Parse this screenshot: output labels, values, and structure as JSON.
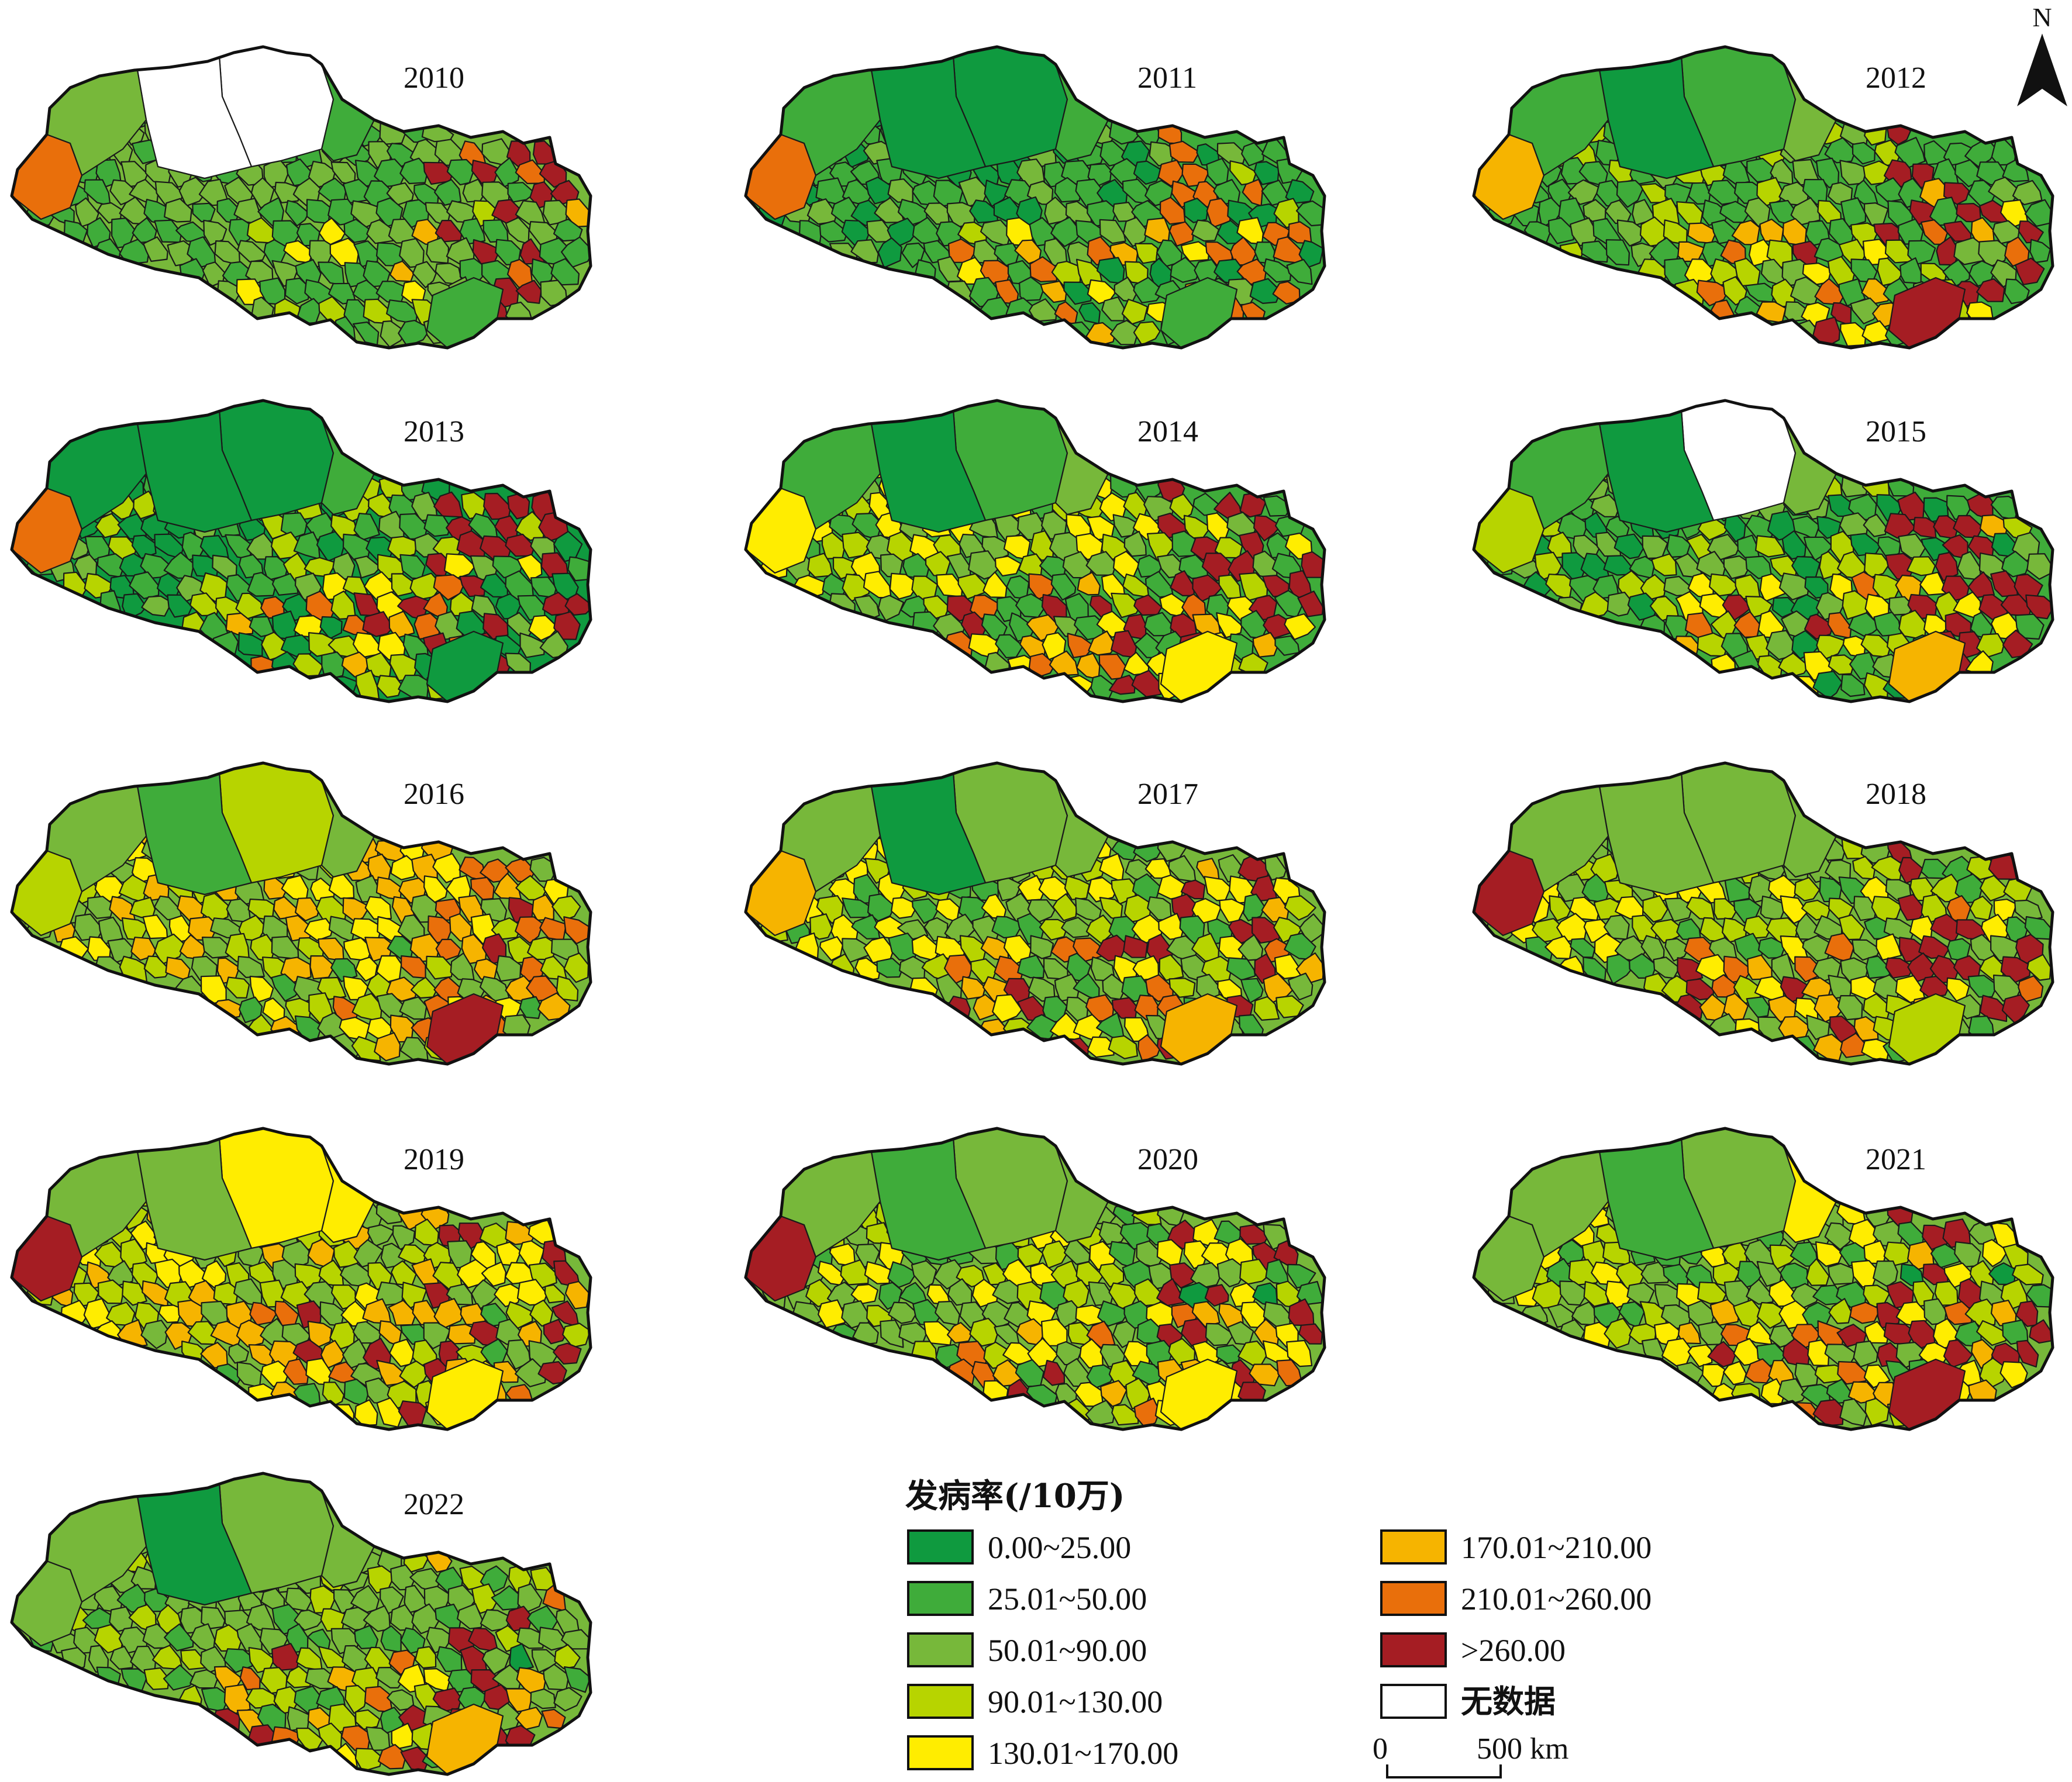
{
  "legend": {
    "title": "发病率(/10万)",
    "classes": [
      {
        "id": "c1",
        "label": "0.00~25.00",
        "color": "#0f9a3f"
      },
      {
        "id": "c2",
        "label": "25.01~50.00",
        "color": "#3fac3a"
      },
      {
        "id": "c3",
        "label": "50.01~90.00",
        "color": "#77b83a"
      },
      {
        "id": "c4",
        "label": "90.01~130.00",
        "color": "#b7d400"
      },
      {
        "id": "c5",
        "label": "130.01~170.00",
        "color": "#ffed00"
      },
      {
        "id": "c6",
        "label": "170.01~210.00",
        "color": "#f6b400"
      },
      {
        "id": "c7",
        "label": "210.01~260.00",
        "color": "#e96f0b"
      },
      {
        "id": "c8",
        "label": ">260.00",
        "color": "#a51d23"
      },
      {
        "id": "nd",
        "label": "无数据",
        "color": "#ffffff"
      }
    ]
  },
  "scale_bar": {
    "zero_label": "0",
    "distance_label": "500 km"
  },
  "north_arrow": {
    "label": "N",
    "icon": "north-arrow-icon"
  },
  "maps": [
    {
      "year": "2010",
      "palette": [
        "c3",
        "c2",
        "c3",
        "c2",
        "c4",
        "c3",
        "c6",
        "c5",
        "c7",
        "c8",
        "c2"
      ],
      "west": "c7",
      "north_block": "nd",
      "north_mid": "nd",
      "north_east": "c2",
      "east_hot": "c8"
    },
    {
      "year": "2011",
      "palette": [
        "c2",
        "c1",
        "c2",
        "c3",
        "c4",
        "c5",
        "c6",
        "c7",
        "c8",
        "c3",
        "c2"
      ],
      "west": "c7",
      "north_block": "c1",
      "north_mid": "c1",
      "north_east": "c2",
      "east_hot": "c7"
    },
    {
      "year": "2012",
      "palette": [
        "c2",
        "c3",
        "c2",
        "c4",
        "c5",
        "c6",
        "c7",
        "c8",
        "c3",
        "c2",
        "c8"
      ],
      "west": "c6",
      "north_block": "c2",
      "north_mid": "c1",
      "north_east": "c3",
      "east_hot": "c8"
    },
    {
      "year": "2013",
      "palette": [
        "c1",
        "c2",
        "c3",
        "c4",
        "c5",
        "c6",
        "c7",
        "c8",
        "c2",
        "c3",
        "c1"
      ],
      "west": "c7",
      "north_block": "c1",
      "north_mid": "c1",
      "north_east": "c2",
      "east_hot": "c8"
    },
    {
      "year": "2014",
      "palette": [
        "c2",
        "c3",
        "c4",
        "c5",
        "c6",
        "c7",
        "c8",
        "c2",
        "c3",
        "c1",
        "c5"
      ],
      "west": "c5",
      "north_block": "c2",
      "north_mid": "c1",
      "north_east": "c3",
      "east_hot": "c8"
    },
    {
      "year": "2015",
      "palette": [
        "c2",
        "c1",
        "c3",
        "c4",
        "c5",
        "c6",
        "c7",
        "c8",
        "c2",
        "c3",
        "c6"
      ],
      "west": "c4",
      "north_block": "nd",
      "north_mid": "c1",
      "north_east": "c3",
      "east_hot": "c8"
    },
    {
      "year": "2016",
      "palette": [
        "c3",
        "c4",
        "c5",
        "c6",
        "c7",
        "c3",
        "c4",
        "c2",
        "c5",
        "c6",
        "c8"
      ],
      "west": "c4",
      "north_block": "c4",
      "north_mid": "c2",
      "north_east": "c3",
      "east_hot": "c7"
    },
    {
      "year": "2017",
      "palette": [
        "c3",
        "c2",
        "c4",
        "c5",
        "c6",
        "c7",
        "c8",
        "c3",
        "c2",
        "c4",
        "c6"
      ],
      "west": "c6",
      "north_block": "c3",
      "north_mid": "c1",
      "north_east": "c3",
      "east_hot": "c8"
    },
    {
      "year": "2018",
      "palette": [
        "c3",
        "c2",
        "c4",
        "c5",
        "c6",
        "c7",
        "c8",
        "c3",
        "c8",
        "c6",
        "c4"
      ],
      "west": "c8",
      "north_block": "c3",
      "north_mid": "c3",
      "north_east": "c3",
      "east_hot": "c8"
    },
    {
      "year": "2019",
      "palette": [
        "c3",
        "c4",
        "c5",
        "c6",
        "c7",
        "c8",
        "c3",
        "c2",
        "c8",
        "c4",
        "c5"
      ],
      "west": "c8",
      "north_block": "c5",
      "north_mid": "c3",
      "north_east": "c5",
      "east_hot": "c8"
    },
    {
      "year": "2020",
      "palette": [
        "c3",
        "c2",
        "c4",
        "c5",
        "c6",
        "c7",
        "c8",
        "c3",
        "c1",
        "c8",
        "c5"
      ],
      "west": "c8",
      "north_block": "c3",
      "north_mid": "c2",
      "north_east": "c3",
      "east_hot": "c8"
    },
    {
      "year": "2021",
      "palette": [
        "c3",
        "c2",
        "c4",
        "c5",
        "c6",
        "c7",
        "c8",
        "c3",
        "c1",
        "c5",
        "c8"
      ],
      "west": "c3",
      "north_block": "c3",
      "north_mid": "c2",
      "north_east": "c5",
      "east_hot": "c8"
    },
    {
      "year": "2022",
      "palette": [
        "c3",
        "c2",
        "c3",
        "c4",
        "c5",
        "c6",
        "c7",
        "c8",
        "c1",
        "c3",
        "c6"
      ],
      "west": "c3",
      "north_block": "c3",
      "north_mid": "c1",
      "north_east": "c3",
      "east_hot": "c8"
    }
  ]
}
